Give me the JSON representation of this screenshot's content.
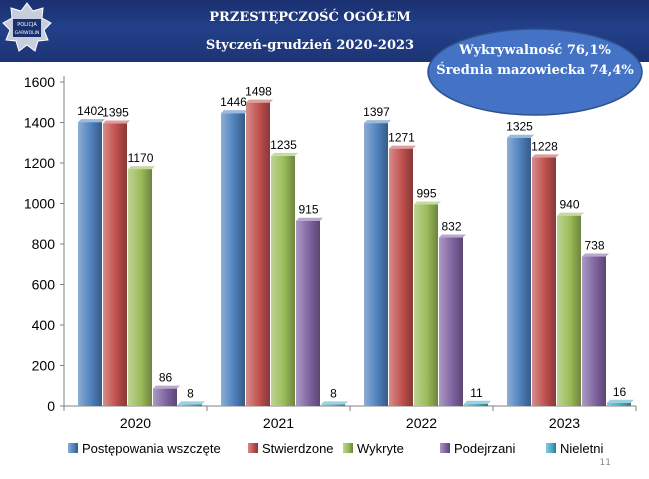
{
  "header": {
    "title": "PRZESTĘPCZOŚĆ OGÓŁEM",
    "subtitle": "Styczeń-grudzień 2020-2023",
    "logo_text_top": "POLICJA",
    "logo_text_bottom": "GARWOLIN"
  },
  "detection": {
    "rate_label": "Wykrywalność  76,1%",
    "regional_label": "Średnia mazowiecka 74,4%"
  },
  "slide_number": "11",
  "colors": {
    "header_blue": "#22408a",
    "ellipse_fill": "#4472c4",
    "ellipse_stroke": "#2f528f"
  },
  "chart_data": {
    "type": "bar",
    "categories": [
      "2020",
      "2021",
      "2022",
      "2023"
    ],
    "ylim": [
      0,
      1600
    ],
    "yticks": [
      0,
      200,
      400,
      600,
      800,
      1000,
      1200,
      1400,
      1600
    ],
    "grid": false,
    "legend_position": "bottom",
    "series": [
      {
        "name": "Postępowania wszczęte",
        "values": [
          1402,
          1446,
          1397,
          1325
        ],
        "color": "#4f81bd"
      },
      {
        "name": "Stwierdzone",
        "values": [
          1395,
          1498,
          1271,
          1228
        ],
        "color": "#c0504d"
      },
      {
        "name": "Wykryte",
        "values": [
          1170,
          1235,
          995,
          940
        ],
        "color": "#9bbb59"
      },
      {
        "name": "Podejrzani",
        "values": [
          86,
          915,
          832,
          738
        ],
        "color": "#8064a2"
      },
      {
        "name": "Nieletni",
        "values": [
          8,
          8,
          11,
          16
        ],
        "color": "#4bacc6"
      }
    ]
  }
}
